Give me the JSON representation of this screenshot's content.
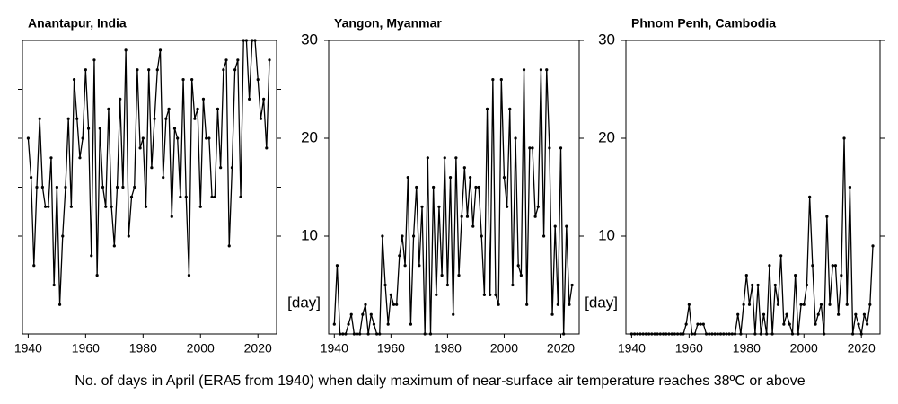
{
  "chart_data": [
    {
      "type": "line",
      "title": "Anantapur, India",
      "x": [
        1940,
        1941,
        1942,
        1943,
        1944,
        1945,
        1946,
        1947,
        1948,
        1949,
        1950,
        1951,
        1952,
        1953,
        1954,
        1955,
        1956,
        1957,
        1958,
        1959,
        1960,
        1961,
        1962,
        1963,
        1964,
        1965,
        1966,
        1967,
        1968,
        1969,
        1970,
        1971,
        1972,
        1973,
        1974,
        1975,
        1976,
        1977,
        1978,
        1979,
        1980,
        1981,
        1982,
        1983,
        1984,
        1985,
        1986,
        1987,
        1988,
        1989,
        1990,
        1991,
        1992,
        1993,
        1994,
        1995,
        1996,
        1997,
        1998,
        1999,
        2000,
        2001,
        2002,
        2003,
        2004,
        2005,
        2006,
        2007,
        2008,
        2009,
        2010,
        2011,
        2012,
        2013,
        2014,
        2015,
        2016,
        2017,
        2018,
        2019,
        2020,
        2021,
        2022,
        2023,
        2024
      ],
      "series": [
        {
          "color": "#000000",
          "values": [
            20,
            16,
            7,
            15,
            22,
            15,
            13,
            13,
            18,
            5,
            15,
            3,
            10,
            15,
            22,
            13,
            26,
            22,
            18,
            20,
            27,
            21,
            8,
            28,
            6,
            21,
            15,
            13,
            23,
            13,
            9,
            15,
            24,
            15,
            29,
            10,
            14,
            15,
            27,
            19,
            20,
            13,
            27,
            17,
            22,
            27,
            29,
            16,
            22,
            23,
            12,
            21,
            20,
            14,
            26,
            14,
            6,
            26,
            22,
            23,
            13,
            24,
            20,
            20,
            14,
            14,
            23,
            17,
            27,
            28,
            9,
            17,
            27,
            28,
            14,
            30,
            30,
            24,
            30,
            30,
            26,
            22,
            24,
            19,
            28
          ]
        }
      ],
      "xlim": [
        1938,
        2026.5
      ],
      "xticks": [
        1940,
        1960,
        1980,
        2000,
        2020
      ],
      "ylim": [
        0,
        30
      ],
      "yticks": [
        5,
        10,
        15,
        20,
        25
      ],
      "ytick_labels": false
    },
    {
      "type": "line",
      "title": "Yangon, Myanmar",
      "y_label": "[day]",
      "x": [
        1940,
        1941,
        1942,
        1943,
        1944,
        1945,
        1946,
        1947,
        1948,
        1949,
        1950,
        1951,
        1952,
        1953,
        1954,
        1955,
        1956,
        1957,
        1958,
        1959,
        1960,
        1961,
        1962,
        1963,
        1964,
        1965,
        1966,
        1967,
        1968,
        1969,
        1970,
        1971,
        1972,
        1973,
        1974,
        1975,
        1976,
        1977,
        1978,
        1979,
        1980,
        1981,
        1982,
        1983,
        1984,
        1985,
        1986,
        1987,
        1988,
        1989,
        1990,
        1991,
        1992,
        1993,
        1994,
        1995,
        1996,
        1997,
        1998,
        1999,
        2000,
        2001,
        2002,
        2003,
        2004,
        2005,
        2006,
        2007,
        2008,
        2009,
        2010,
        2011,
        2012,
        2013,
        2014,
        2015,
        2016,
        2017,
        2018,
        2019,
        2020,
        2021,
        2022,
        2023,
        2024
      ],
      "series": [
        {
          "color": "#000000",
          "values": [
            1,
            7,
            0,
            0,
            0,
            1,
            2,
            0,
            0,
            0,
            2,
            3,
            0,
            2,
            1,
            0,
            0,
            10,
            5,
            1,
            4,
            3,
            3,
            8,
            10,
            7,
            16,
            1,
            10,
            15,
            7,
            13,
            0,
            18,
            0,
            15,
            4,
            13,
            6,
            18,
            5,
            16,
            2,
            18,
            6,
            12,
            17,
            12,
            16,
            11,
            15,
            15,
            10,
            4,
            23,
            4,
            26,
            4,
            3,
            26,
            16,
            13,
            23,
            5,
            20,
            7,
            6,
            27,
            3,
            19,
            19,
            12,
            13,
            27,
            10,
            27,
            19,
            2,
            11,
            3,
            19,
            0,
            11,
            3,
            5
          ]
        }
      ],
      "xlim": [
        1938,
        2026.5
      ],
      "xticks": [
        1940,
        1960,
        1980,
        2000,
        2020
      ],
      "ylim": [
        0,
        30
      ],
      "yticks": [
        10,
        20,
        30
      ],
      "ytick_labels": true
    },
    {
      "type": "line",
      "title": "Phnom Penh, Cambodia",
      "y_label": "[day]",
      "x": [
        1940,
        1941,
        1942,
        1943,
        1944,
        1945,
        1946,
        1947,
        1948,
        1949,
        1950,
        1951,
        1952,
        1953,
        1954,
        1955,
        1956,
        1957,
        1958,
        1959,
        1960,
        1961,
        1962,
        1963,
        1964,
        1965,
        1966,
        1967,
        1968,
        1969,
        1970,
        1971,
        1972,
        1973,
        1974,
        1975,
        1976,
        1977,
        1978,
        1979,
        1980,
        1981,
        1982,
        1983,
        1984,
        1985,
        1986,
        1987,
        1988,
        1989,
        1990,
        1991,
        1992,
        1993,
        1994,
        1995,
        1996,
        1997,
        1998,
        1999,
        2000,
        2001,
        2002,
        2003,
        2004,
        2005,
        2006,
        2007,
        2008,
        2009,
        2010,
        2011,
        2012,
        2013,
        2014,
        2015,
        2016,
        2017,
        2018,
        2019,
        2020,
        2021,
        2022,
        2023,
        2024
      ],
      "series": [
        {
          "color": "#000000",
          "values": [
            0,
            0,
            0,
            0,
            0,
            0,
            0,
            0,
            0,
            0,
            0,
            0,
            0,
            0,
            0,
            0,
            0,
            0,
            0,
            1,
            3,
            0,
            0,
            1,
            1,
            1,
            0,
            0,
            0,
            0,
            0,
            0,
            0,
            0,
            0,
            0,
            0,
            2,
            0,
            3,
            6,
            3,
            5,
            0,
            5,
            0,
            2,
            0,
            7,
            0,
            5,
            3,
            8,
            1,
            2,
            1,
            0,
            6,
            0,
            3,
            3,
            5,
            14,
            7,
            1,
            2,
            3,
            0,
            12,
            3,
            7,
            7,
            2,
            6,
            20,
            3,
            15,
            0,
            2,
            1,
            0,
            2,
            1,
            3,
            9
          ]
        }
      ],
      "xlim": [
        1938,
        2026.5
      ],
      "xticks": [
        1940,
        1960,
        1980,
        2000,
        2020
      ],
      "ylim": [
        0,
        30
      ],
      "yticks": [
        10,
        20,
        30
      ],
      "ytick_labels": true
    }
  ],
  "caption": "No. of days in April (ERA5 from 1940) when daily maximum of near-surface air temperature reaches 38ºC or above"
}
